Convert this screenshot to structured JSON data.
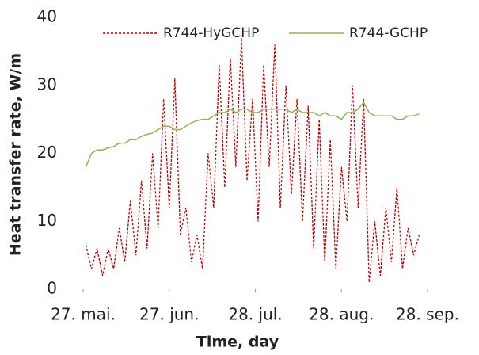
{
  "chart_data": {
    "type": "line",
    "xlabel": "Time, day",
    "ylabel": "Heat transfer rate, W/m",
    "x": [
      1,
      3,
      5,
      7,
      9,
      11,
      13,
      15,
      17,
      19,
      21,
      23,
      25,
      27,
      29,
      31,
      33,
      35,
      37,
      39,
      41,
      43,
      45,
      47,
      49,
      51,
      53,
      55,
      57,
      59,
      61,
      63,
      65,
      67,
      69,
      71,
      73,
      75,
      77,
      79,
      81,
      83,
      85,
      87,
      89,
      91,
      93,
      95,
      97,
      99,
      101,
      103,
      105,
      107,
      109,
      111,
      113,
      115,
      117,
      119,
      121
    ],
    "series": [
      {
        "name": "R744-HyGCHP",
        "color": "#c00000",
        "dashed": true,
        "values": [
          6.5,
          3,
          6,
          2,
          6,
          3,
          9,
          4,
          13,
          5,
          16,
          6,
          20,
          9,
          28,
          12,
          31,
          8,
          12,
          4,
          8,
          3,
          20,
          12,
          33,
          15,
          34,
          18,
          37,
          16,
          28,
          10,
          33,
          18,
          36,
          12,
          30,
          14,
          28,
          10,
          27,
          6,
          25,
          4,
          22,
          3,
          18,
          10,
          30,
          12,
          28,
          1,
          10,
          2,
          12,
          4,
          15,
          3,
          9,
          5,
          8
        ]
      },
      {
        "name": "R744-GCHP",
        "color": "#8db356",
        "dashed": false,
        "values": [
          18,
          20,
          20.5,
          20.5,
          20.8,
          21,
          21.5,
          21.5,
          22,
          22,
          22.5,
          22.8,
          23,
          23.5,
          24,
          24,
          23.5,
          23.5,
          24,
          24.5,
          24.8,
          25,
          25,
          25.5,
          26,
          26,
          26.5,
          26,
          26.5,
          26.5,
          26,
          26,
          26.5,
          26.5,
          26.5,
          26.5,
          26.5,
          26,
          26.5,
          26,
          26,
          26,
          25.5,
          26,
          25.5,
          25.5,
          25,
          26,
          26,
          26.5,
          27.5,
          26,
          25.5,
          25.5,
          25.5,
          25.5,
          25,
          25,
          25.5,
          25.5,
          25.8
        ]
      }
    ],
    "xlim": [
      0,
      124
    ],
    "xticks": [
      {
        "value": 0,
        "label": "27. mai."
      },
      {
        "value": 31,
        "label": "27. jun."
      },
      {
        "value": 62,
        "label": "28. jul."
      },
      {
        "value": 93,
        "label": "28. aug."
      },
      {
        "value": 124,
        "label": "28. sep."
      }
    ],
    "ylim": [
      0,
      40
    ],
    "yticks": [
      0,
      10,
      20,
      30,
      40
    ],
    "legend": "top",
    "grid": false
  }
}
